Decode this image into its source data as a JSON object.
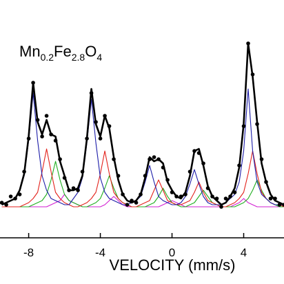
{
  "chart_data": {
    "type": "line",
    "annotation": [
      "Mn",
      "0.2",
      "Fe",
      "2.8",
      "O",
      "4"
    ],
    "xlabel": "VELOCITY (mm/s)",
    "xlim": [
      -9.6,
      6.25
    ],
    "xticks": [
      -8,
      -4,
      0,
      4
    ],
    "ylim": [
      0,
      115
    ],
    "x": [
      -9.5,
      -9.25,
      -9.0,
      -8.75,
      -8.5,
      -8.25,
      -8.0,
      -7.75,
      -7.5,
      -7.25,
      -7.0,
      -6.75,
      -6.5,
      -6.25,
      -6.0,
      -5.75,
      -5.5,
      -5.25,
      -5.0,
      -4.75,
      -4.5,
      -4.25,
      -4.0,
      -3.75,
      -3.5,
      -3.25,
      -3.0,
      -2.75,
      -2.5,
      -2.25,
      -2.0,
      -1.75,
      -1.5,
      -1.25,
      -1.0,
      -0.75,
      -0.5,
      -0.25,
      0,
      0.25,
      0.5,
      0.75,
      1.0,
      1.25,
      1.5,
      1.75,
      2.0,
      2.25,
      2.5,
      2.75,
      3.0,
      3.25,
      3.5,
      3.75,
      4.0,
      4.25,
      4.5,
      4.75,
      5.0,
      5.25,
      5.5,
      5.75,
      6.0,
      6.25
    ],
    "series": [
      {
        "color": "#000000",
        "marker": true,
        "values": [
          17,
          16,
          20,
          19,
          21,
          32,
          48,
          75,
          57,
          49,
          59,
          50,
          47,
          38,
          29,
          23,
          24,
          23,
          32,
          48,
          70,
          56,
          48,
          59,
          54,
          38,
          30,
          21,
          16,
          18,
          17,
          21,
          30,
          38,
          39,
          38,
          34,
          28,
          22,
          20,
          20,
          21,
          32,
          42,
          41,
          36,
          24,
          20,
          19,
          15,
          19,
          20,
          22,
          35,
          54,
          94,
          79,
          55,
          38,
          27,
          19,
          19,
          16,
          16
        ]
      },
      {
        "color": "#000000",
        "width": 2.6,
        "values": [
          16,
          17,
          18,
          19,
          23,
          31,
          49,
          75,
          56,
          50,
          57,
          50,
          49,
          37,
          30,
          23,
          23,
          24,
          30,
          48,
          72,
          55,
          49,
          59,
          53,
          39,
          28,
          21,
          18,
          17,
          18,
          21,
          29,
          39,
          37,
          38,
          36,
          27,
          23,
          20,
          19,
          22,
          30,
          42,
          43,
          35,
          25,
          20,
          18,
          16,
          17,
          20,
          24,
          34,
          55,
          94,
          78,
          56,
          36,
          27,
          21,
          18,
          17,
          16
        ]
      },
      {
        "color": "#1c1ca8",
        "width": 1.1,
        "values": [
          16,
          17,
          18,
          19,
          23,
          30,
          47,
          70,
          47,
          30,
          23,
          19,
          18,
          17,
          16,
          16,
          19,
          22,
          29,
          46,
          67,
          46,
          29,
          22,
          19,
          18,
          17,
          16,
          16,
          17,
          18,
          20,
          27,
          35,
          27,
          20,
          18,
          17,
          16,
          16,
          17,
          20,
          26,
          33,
          26,
          20,
          17,
          16,
          16,
          16,
          17,
          19,
          21,
          27,
          42,
          72,
          42,
          27,
          21,
          19,
          17,
          16,
          16,
          16
        ]
      },
      {
        "color": "#e3221c",
        "width": 1.1,
        "values": [
          15,
          15,
          15,
          15,
          15,
          16,
          17,
          19,
          22,
          32,
          43,
          32,
          22,
          19,
          17,
          16,
          15,
          15,
          16,
          17,
          19,
          22,
          31,
          42,
          31,
          22,
          19,
          17,
          16,
          15,
          15,
          16,
          17,
          18,
          23,
          28,
          23,
          18,
          17,
          16,
          16,
          17,
          18,
          22,
          27,
          22,
          18,
          17,
          16,
          15,
          15,
          16,
          17,
          19,
          22,
          31,
          42,
          31,
          22,
          19,
          17,
          16,
          16,
          15
        ]
      },
      {
        "color": "#1fae1f",
        "width": 1.1,
        "values": [
          15,
          15,
          15,
          15,
          15,
          15,
          15,
          16,
          17,
          18,
          21,
          28,
          37,
          28,
          21,
          18,
          17,
          16,
          15,
          15,
          16,
          17,
          19,
          24,
          30,
          24,
          19,
          17,
          16,
          15,
          15,
          15,
          15,
          16,
          17,
          20,
          24,
          20,
          17,
          16,
          15,
          15,
          16,
          17,
          20,
          23,
          20,
          17,
          16,
          15,
          15,
          15,
          15,
          16,
          17,
          19,
          23,
          28,
          23,
          19,
          17,
          16,
          15,
          15
        ]
      },
      {
        "color": "#d21fd2",
        "width": 1.1,
        "values": [
          15,
          15,
          15,
          15,
          15,
          15,
          15,
          15,
          15,
          15,
          15,
          16,
          17,
          18,
          21,
          18,
          17,
          16,
          15,
          15,
          15,
          15,
          15,
          16,
          18,
          20,
          18,
          16,
          15,
          15,
          15,
          15,
          15,
          15,
          15,
          15,
          16,
          17,
          18,
          17,
          16,
          15,
          15,
          15,
          15,
          15,
          15,
          15,
          15,
          15,
          15,
          15,
          16,
          17,
          19,
          17,
          16,
          15,
          15,
          15,
          15,
          15,
          15,
          15
        ]
      }
    ]
  }
}
